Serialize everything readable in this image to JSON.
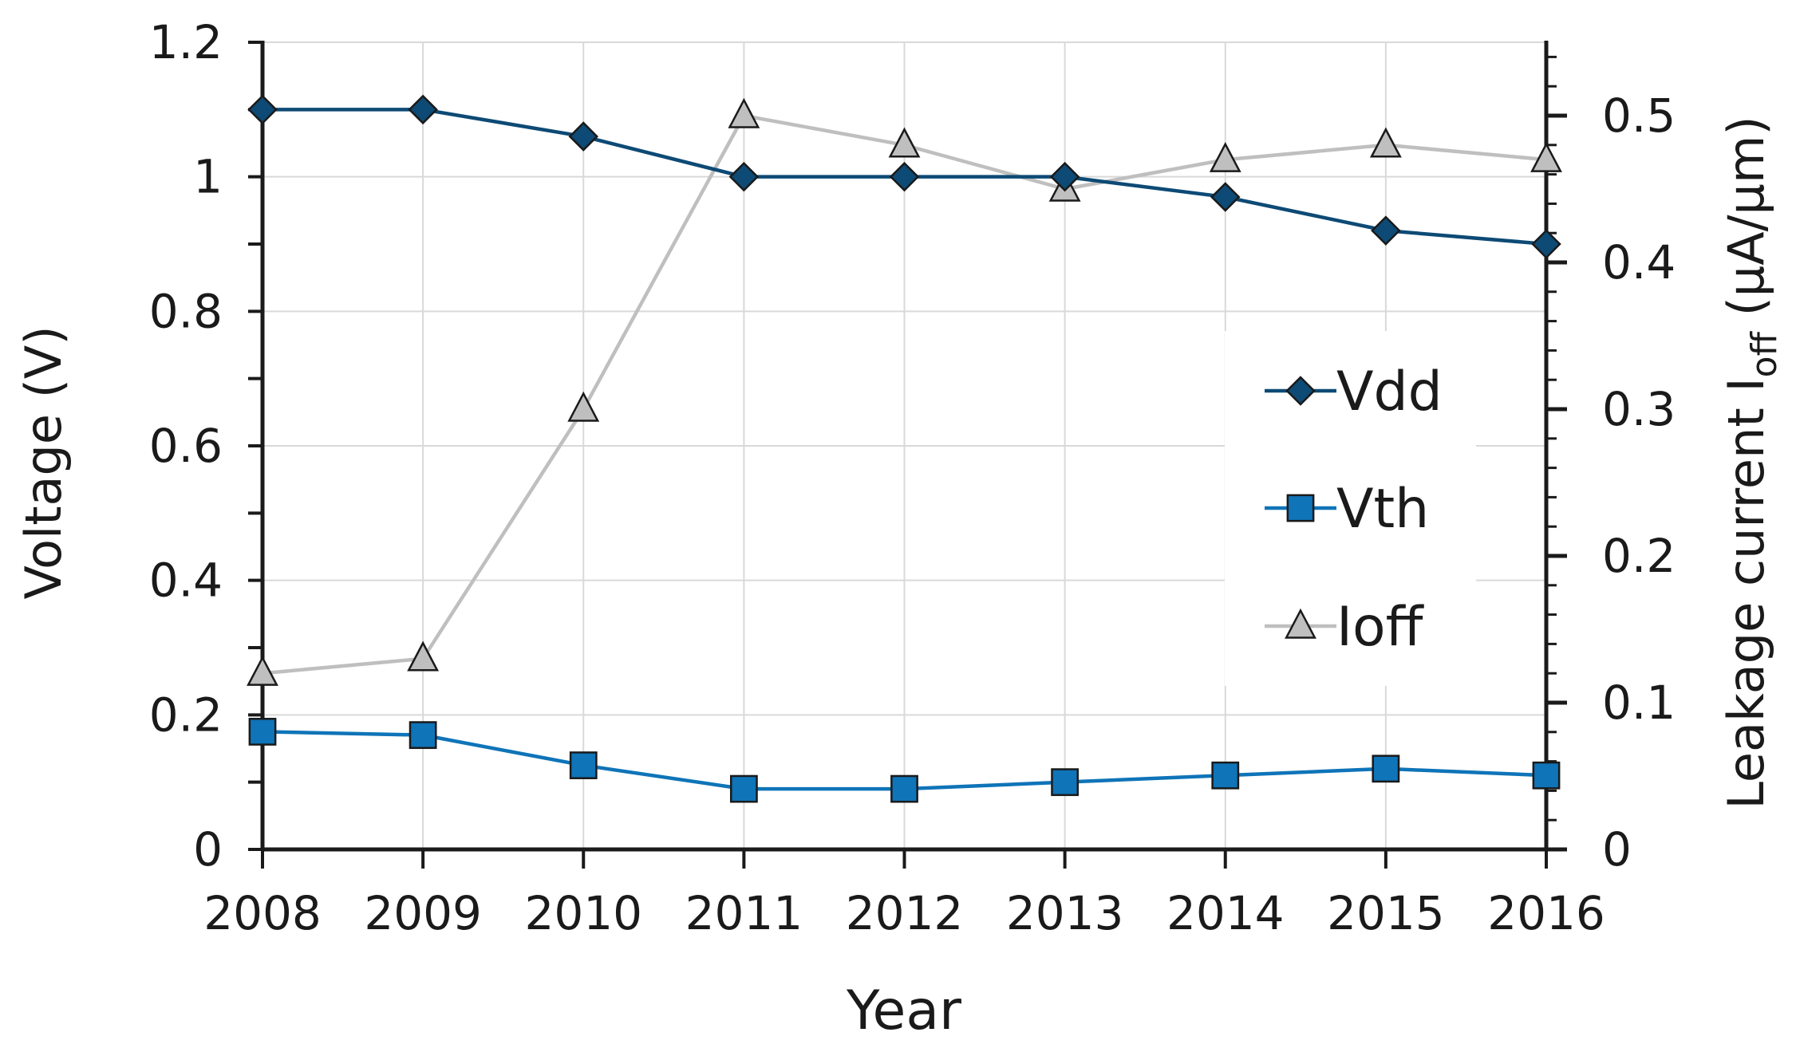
{
  "chart_data": {
    "type": "line",
    "x": [
      2008,
      2009,
      2010,
      2011,
      2012,
      2013,
      2014,
      2015,
      2016
    ],
    "xlabel": "Year",
    "ylabel_left": "Voltage (V)",
    "ylabel_right_main": "Leakage current I",
    "ylabel_right_sub": "off",
    "ylabel_right_unit": " (μA/μm)",
    "ylim_left": [
      0,
      1.2
    ],
    "ylim_right": [
      0,
      0.55
    ],
    "yticks_left": [
      0,
      0.2,
      0.4,
      0.6,
      0.8,
      1,
      1.2
    ],
    "yticks_left_labels": [
      "0",
      "0.2",
      "0.4",
      "0.6",
      "0.8",
      "1",
      "1.2"
    ],
    "yticks_right": [
      0,
      0.1,
      0.2,
      0.3,
      0.4,
      0.5
    ],
    "yticks_right_labels": [
      "0",
      "0.1",
      "0.2",
      "0.3",
      "0.4",
      "0.5"
    ],
    "grid": true,
    "legend_position": "center-right",
    "series": [
      {
        "name": "Vdd",
        "axis": "left",
        "marker": "diamond",
        "color": "#0d4a75",
        "values": [
          1.1,
          1.1,
          1.06,
          1.0,
          1.0,
          1.0,
          0.97,
          0.92,
          0.9
        ]
      },
      {
        "name": "Vth",
        "axis": "left",
        "marker": "square",
        "color": "#0f74b8",
        "values": [
          0.175,
          0.17,
          0.125,
          0.09,
          0.09,
          0.1,
          0.11,
          0.12,
          0.11
        ]
      },
      {
        "name": "Ioff",
        "axis": "right",
        "marker": "triangle",
        "color": "#bfbfbf",
        "values": [
          0.12,
          0.13,
          0.3,
          0.5,
          0.48,
          0.45,
          0.47,
          0.48,
          0.47
        ]
      }
    ],
    "colors": {
      "axis": "#1a1a1a",
      "grid": "#d9d9d9",
      "marker_edge": "#1a1a1a"
    }
  }
}
